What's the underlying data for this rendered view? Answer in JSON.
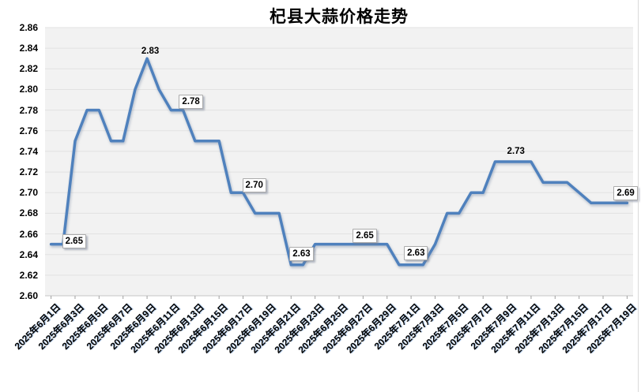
{
  "chart_data": {
    "type": "line",
    "title": "杞县大蒜价格走势",
    "legend": "none",
    "grid": true,
    "ylim": [
      2.6,
      2.86
    ],
    "y_tick_step": 0.02,
    "y_ticks": [
      "2.86",
      "2.84",
      "2.82",
      "2.80",
      "2.78",
      "2.76",
      "2.74",
      "2.72",
      "2.70",
      "2.68",
      "2.66",
      "2.64",
      "2.62",
      "2.60"
    ],
    "x_tick_labels": [
      "2025年6月1日",
      "2025年6月3日",
      "2025年6月5日",
      "2025年6月7日",
      "2025年6月9日",
      "2025年6月11日",
      "2025年6月13日",
      "2025年6月15日",
      "2025年6月17日",
      "2025年6月19日",
      "2025年6月21日",
      "2025年6月23日",
      "2025年6月25日",
      "2025年6月27日",
      "2025年6月29日",
      "2025年7月1日",
      "2025年7月3日",
      "2025年7月5日",
      "2025年7月7日",
      "2025年7月9日",
      "2025年7月11日",
      "2025年7月13日",
      "2025年7月15日",
      "2025年7月17日",
      "2025年7月19日"
    ],
    "x": [
      "2025年6月1日",
      "2025年6月2日",
      "2025年6月3日",
      "2025年6月4日",
      "2025年6月5日",
      "2025年6月6日",
      "2025年6月7日",
      "2025年6月8日",
      "2025年6月9日",
      "2025年6月10日",
      "2025年6月11日",
      "2025年6月12日",
      "2025年6月13日",
      "2025年6月14日",
      "2025年6月15日",
      "2025年6月16日",
      "2025年6月17日",
      "2025年6月18日",
      "2025年6月19日",
      "2025年6月20日",
      "2025年6月21日",
      "2025年6月22日",
      "2025年6月23日",
      "2025年6月24日",
      "2025年6月25日",
      "2025年6月26日",
      "2025年6月27日",
      "2025年6月28日",
      "2025年6月29日",
      "2025年6月30日",
      "2025年7月1日",
      "2025年7月2日",
      "2025年7月3日",
      "2025年7月4日",
      "2025年7月5日",
      "2025年7月6日",
      "2025年7月7日",
      "2025年7月8日",
      "2025年7月9日",
      "2025年7月10日",
      "2025年7月11日",
      "2025年7月12日",
      "2025年7月13日",
      "2025年7月14日",
      "2025年7月15日",
      "2025年7月16日",
      "2025年7月17日",
      "2025年7月18日",
      "2025年7月19日"
    ],
    "values": [
      2.65,
      2.65,
      2.75,
      2.78,
      2.78,
      2.75,
      2.75,
      2.8,
      2.83,
      2.8,
      2.78,
      2.78,
      2.75,
      2.75,
      2.75,
      2.7,
      2.7,
      2.68,
      2.68,
      2.68,
      2.63,
      2.63,
      2.65,
      2.65,
      2.65,
      2.65,
      2.65,
      2.65,
      2.65,
      2.63,
      2.63,
      2.63,
      2.65,
      2.68,
      2.68,
      2.7,
      2.7,
      2.73,
      2.73,
      2.73,
      2.73,
      2.71,
      2.71,
      2.71,
      2.7,
      2.69,
      2.69,
      2.69,
      2.69
    ],
    "point_labels": [
      {
        "x": "2025年6月1日",
        "text": "2.65",
        "style": "box"
      },
      {
        "x": "2025年6月9日",
        "text": "2.83",
        "style": "plain"
      },
      {
        "x": "2025年6月11日",
        "text": "2.78",
        "style": "box"
      },
      {
        "x": "2025年6月17日",
        "text": "2.70",
        "style": "box"
      },
      {
        "x": "2025年6月21日",
        "text": "2.63",
        "style": "box"
      },
      {
        "x": "2025年6月27日",
        "text": "2.65",
        "style": "box"
      },
      {
        "x": "2025年7月1日",
        "text": "2.63",
        "style": "box"
      },
      {
        "x": "2025年7月10日",
        "text": "2.73",
        "style": "plain"
      },
      {
        "x": "2025年7月19日",
        "text": "2.69",
        "style": "box"
      }
    ],
    "colors": {
      "line": "#4f81bd",
      "plot_bg": "#f2f2f2",
      "gridline": "#e2e2e2",
      "axis_line": "#c6c6c6",
      "tick": "#9f9f9f",
      "title_text": "#000000",
      "label_text": "#000000"
    }
  }
}
